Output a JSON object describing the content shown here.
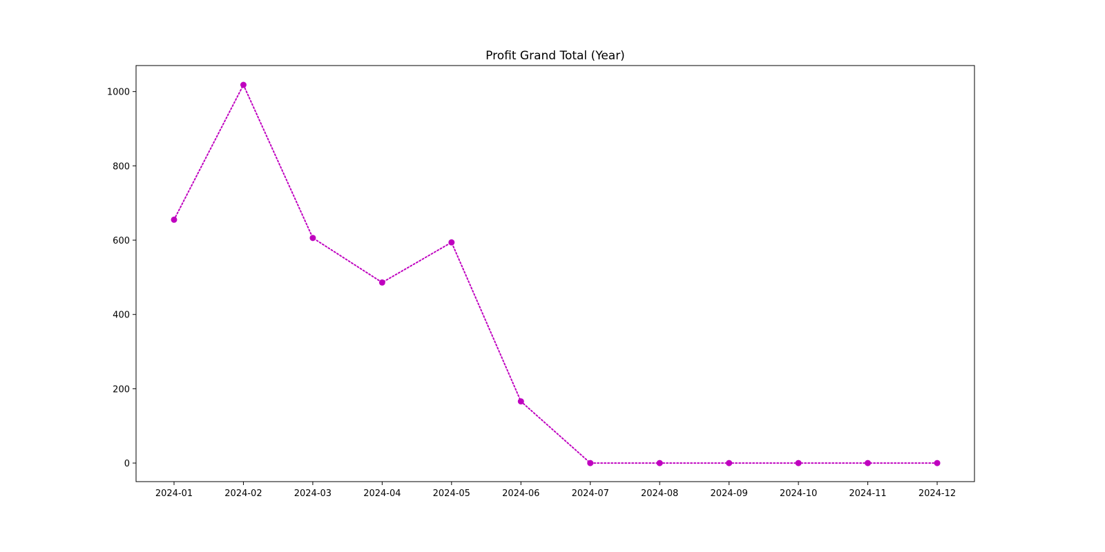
{
  "chart_data": {
    "type": "line",
    "title": "Profit Grand Total (Year)",
    "xlabel": "",
    "ylabel": "",
    "categories": [
      "2024-01",
      "2024-02",
      "2024-03",
      "2024-04",
      "2024-05",
      "2024-06",
      "2024-07",
      "2024-08",
      "2024-09",
      "2024-10",
      "2024-11",
      "2024-12"
    ],
    "series": [
      {
        "values": [
          655,
          1018,
          606,
          486,
          594,
          166,
          0,
          0,
          0,
          0,
          0,
          0
        ]
      }
    ],
    "yticks": [
      "0",
      "200",
      "400",
      "600",
      "800",
      "1000"
    ],
    "ylim": [
      -50,
      1070
    ],
    "grid": false,
    "legend": "none",
    "line_style": "dotted",
    "marker": "circle",
    "colors": {
      "series": "#bf00bf",
      "axes": "#000000",
      "background": "#ffffff"
    }
  }
}
